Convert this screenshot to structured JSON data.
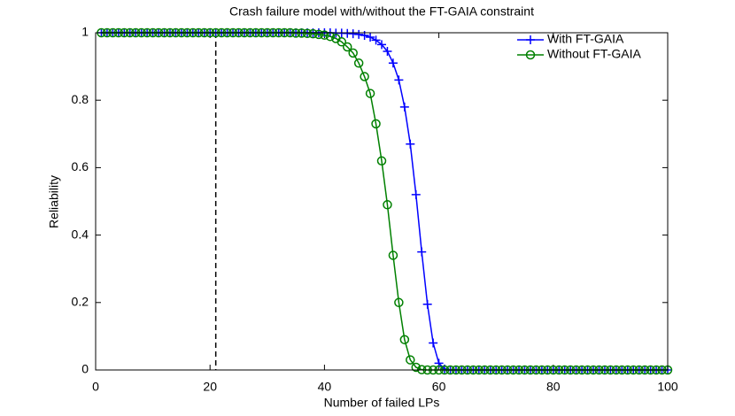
{
  "chart_data": {
    "type": "line",
    "title": "Crash failure model with/without the FT-GAIA constraint",
    "xlabel": "Number of failed LPs",
    "ylabel": "Reliability",
    "x": [
      1,
      2,
      3,
      4,
      5,
      6,
      7,
      8,
      9,
      10,
      11,
      12,
      13,
      14,
      15,
      16,
      17,
      18,
      19,
      20,
      21,
      22,
      23,
      24,
      25,
      26,
      27,
      28,
      29,
      30,
      31,
      32,
      33,
      34,
      35,
      36,
      37,
      38,
      39,
      40,
      41,
      42,
      43,
      44,
      45,
      46,
      47,
      48,
      49,
      50,
      51,
      52,
      53,
      54,
      55,
      56,
      57,
      58,
      59,
      60,
      61,
      62,
      63,
      64,
      65,
      66,
      67,
      68,
      69,
      70,
      71,
      72,
      73,
      74,
      75,
      76,
      77,
      78,
      79,
      80,
      81,
      82,
      83,
      84,
      85,
      86,
      87,
      88,
      89,
      90,
      91,
      92,
      93,
      94,
      95,
      96,
      97,
      98,
      99,
      100
    ],
    "series": [
      {
        "name": "With FT-GAIA",
        "color": "#0000ff",
        "marker": "plus",
        "values": [
          1,
          1,
          1,
          1,
          1,
          1,
          1,
          1,
          1,
          1,
          1,
          1,
          1,
          1,
          1,
          1,
          1,
          1,
          1,
          1,
          1,
          1,
          1,
          1,
          1,
          1,
          1,
          1,
          1,
          1,
          1,
          1,
          1,
          1,
          1,
          1,
          1,
          1,
          1,
          1,
          1,
          0.999,
          0.999,
          0.998,
          0.997,
          0.995,
          0.992,
          0.987,
          0.978,
          0.965,
          0.945,
          0.91,
          0.86,
          0.78,
          0.67,
          0.52,
          0.35,
          0.195,
          0.08,
          0.02,
          0.003,
          0,
          0,
          0,
          0,
          0,
          0,
          0,
          0,
          0,
          0,
          0,
          0,
          0,
          0,
          0,
          0,
          0,
          0,
          0,
          0,
          0,
          0,
          0,
          0,
          0,
          0,
          0,
          0,
          0,
          0,
          0,
          0,
          0,
          0,
          0,
          0,
          0,
          0,
          0
        ]
      },
      {
        "name": "Without FT-GAIA",
        "color": "#008000",
        "marker": "circle",
        "values": [
          1,
          1,
          1,
          1,
          1,
          1,
          1,
          1,
          1,
          1,
          1,
          1,
          1,
          1,
          1,
          1,
          1,
          1,
          1,
          1,
          1,
          1,
          1,
          1,
          1,
          1,
          1,
          1,
          1,
          1,
          1,
          1,
          1,
          1,
          0.999,
          0.999,
          0.998,
          0.997,
          0.995,
          0.993,
          0.989,
          0.983,
          0.973,
          0.958,
          0.94,
          0.91,
          0.87,
          0.82,
          0.73,
          0.62,
          0.49,
          0.34,
          0.2,
          0.09,
          0.03,
          0.008,
          0.001,
          0,
          0,
          0,
          0,
          0,
          0,
          0,
          0,
          0,
          0,
          0,
          0,
          0,
          0,
          0,
          0,
          0,
          0,
          0,
          0,
          0,
          0,
          0,
          0,
          0,
          0,
          0,
          0,
          0,
          0,
          0,
          0,
          0,
          0,
          0,
          0,
          0,
          0,
          0,
          0,
          0,
          0,
          0
        ]
      }
    ],
    "vline": 21,
    "xlim": [
      0,
      100
    ],
    "xticks": [
      0,
      20,
      40,
      60,
      80,
      100
    ],
    "ylim": [
      0,
      1
    ],
    "yticks": [
      0,
      0.2,
      0.4,
      0.6,
      0.8,
      1
    ],
    "grid": false,
    "legend": "northeast"
  }
}
